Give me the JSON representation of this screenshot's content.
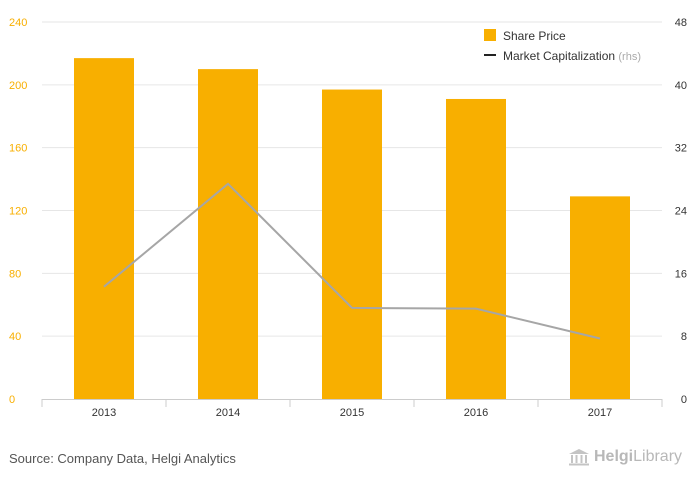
{
  "chart_data": {
    "type": "bar",
    "categories": [
      "2013",
      "2014",
      "2015",
      "2016",
      "2017"
    ],
    "series": [
      {
        "name": "Share Price",
        "type": "bar",
        "axis": "left",
        "values": [
          217,
          210,
          197,
          191,
          129
        ]
      },
      {
        "name": "Market Capitalization",
        "name_suffix": "(rhs)",
        "type": "line",
        "axis": "right",
        "values": [
          14.3,
          27.4,
          11.6,
          11.5,
          7.7
        ]
      }
    ],
    "left_axis": {
      "ticks": [
        "0",
        "40",
        "80",
        "120",
        "160",
        "200",
        "240"
      ],
      "ylim": [
        0,
        240
      ]
    },
    "right_axis": {
      "ticks": [
        "0",
        "8",
        "16",
        "24",
        "32",
        "40",
        "48"
      ],
      "ylim": [
        0,
        48
      ]
    },
    "legend": {
      "placement": "top-right"
    },
    "grid": true,
    "colors": {
      "bar": "#F8AF00",
      "line": "#A6A6A6",
      "left_axis_text": "#F8AF00",
      "right_axis_text": "#333333"
    }
  },
  "footer": {
    "source": "Source: Company Data, Helgi Analytics",
    "brand_bold": "Helgi",
    "brand_rest": "Library"
  }
}
